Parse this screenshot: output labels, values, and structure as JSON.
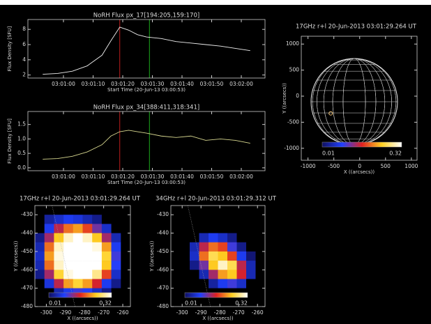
{
  "chart_data": [
    {
      "type": "line",
      "title": "NoRH Flux px_17[194:205,159:170]",
      "ylabel": "Flux Density [SFU]",
      "xlabel": "Start Time (20-Jun-13 03:00:53)",
      "x": [
        "03:00:53",
        "03:00:58",
        "03:01:03",
        "03:01:08",
        "03:01:13",
        "03:01:16",
        "03:01:19",
        "03:01:22",
        "03:01:25",
        "03:01:28",
        "03:01:33",
        "03:01:38",
        "03:01:43",
        "03:01:48",
        "03:01:53",
        "03:01:58",
        "03:02:03"
      ],
      "series": [
        {
          "name": "px_17",
          "color": "#f0f0f0",
          "values": [
            2.1,
            2.2,
            2.5,
            3.2,
            4.6,
            6.5,
            8.3,
            7.9,
            7.3,
            7.0,
            6.8,
            6.4,
            6.2,
            6.0,
            5.8,
            5.5,
            5.2
          ]
        }
      ],
      "xlim": [
        "03:00:48",
        "03:02:08"
      ],
      "xticks": [
        "03:01:00",
        "03:01:10",
        "03:01:20",
        "03:01:30",
        "03:01:40",
        "03:01:50",
        "03:02:00"
      ],
      "ylim": [
        1.6,
        9.3
      ],
      "yticks": [
        2,
        4,
        6,
        8
      ],
      "markers": [
        {
          "x": "03:01:19",
          "color": "#d42020"
        },
        {
          "x": "03:01:29",
          "color": "#20c020"
        }
      ]
    },
    {
      "type": "line",
      "title": "NoRH Flux px_34[388:411,318:341]",
      "ylabel": "Flux Density [SFU]",
      "xlabel": "Start Time (20-Jun-13 03:00:53)",
      "x": [
        "03:00:53",
        "03:00:58",
        "03:01:03",
        "03:01:08",
        "03:01:13",
        "03:01:16",
        "03:01:19",
        "03:01:22",
        "03:01:25",
        "03:01:28",
        "03:01:33",
        "03:01:38",
        "03:01:43",
        "03:01:48",
        "03:01:53",
        "03:01:58",
        "03:02:03"
      ],
      "series": [
        {
          "name": "px_34",
          "color": "#d8d890",
          "values": [
            0.3,
            0.32,
            0.4,
            0.55,
            0.8,
            1.1,
            1.25,
            1.3,
            1.25,
            1.2,
            1.1,
            1.05,
            1.1,
            0.95,
            1.0,
            0.95,
            0.85
          ]
        }
      ],
      "xlim": [
        "03:00:48",
        "03:02:08"
      ],
      "xticks": [
        "03:01:00",
        "03:01:10",
        "03:01:20",
        "03:01:30",
        "03:01:40",
        "03:01:50",
        "03:02:00"
      ],
      "ylim": [
        -0.1,
        1.95
      ],
      "yticks": [
        {
          "value": 0,
          "label": "0.0"
        },
        {
          "value": 0.5,
          "label": "0.5"
        },
        {
          "value": 1,
          "label": "1.0"
        },
        {
          "value": 1.5,
          "label": "1.5"
        }
      ],
      "markers": [
        {
          "x": "03:01:19",
          "color": "#d42020"
        },
        {
          "x": "03:01:29",
          "color": "#20c020"
        }
      ]
    },
    {
      "type": "disk",
      "title": "17GHz r+l 20-Jun-2013 03:01:29.264 UT",
      "xlabel": "X ((arcsecs))",
      "ylabel": "Y ((arcsecs))",
      "xlim": [
        -1130,
        1110
      ],
      "xticks": [
        -1000,
        -500,
        0,
        500,
        1000
      ],
      "ylim": [
        -1230,
        1150
      ],
      "yticks": [
        -1000,
        -500,
        0,
        500,
        1000
      ],
      "source": {
        "x": -560,
        "y": -330
      },
      "zlim": [
        0.01,
        0.32
      ]
    },
    {
      "type": "heatmap",
      "title": "17GHz r+l 20-Jun-2013 03:01:29.264 UT",
      "xlabel": "X ((arcsecs))",
      "ylabel": "Y ((arcsecs))",
      "xlim": [
        -306,
        -256
      ],
      "xticks": [
        -300,
        -290,
        -280,
        -270,
        -260
      ],
      "ylim": [
        -480,
        -425
      ],
      "yticks": [
        -430,
        -440,
        -450,
        -460,
        -470,
        -480
      ],
      "zlim": [
        0.01,
        0.32
      ],
      "z": [
        [
          0,
          0,
          0,
          0,
          0,
          0,
          0,
          0,
          0,
          0
        ],
        [
          0,
          0.04,
          0.06,
          0.08,
          0.07,
          0.05,
          0.03,
          0,
          0,
          0
        ],
        [
          0,
          0.08,
          0.15,
          0.2,
          0.22,
          0.18,
          0.12,
          0.06,
          0,
          0
        ],
        [
          0.03,
          0.14,
          0.24,
          0.3,
          0.32,
          0.3,
          0.24,
          0.14,
          0.05,
          0
        ],
        [
          0.05,
          0.2,
          0.3,
          0.33,
          0.34,
          0.34,
          0.31,
          0.22,
          0.08,
          0
        ],
        [
          0.06,
          0.22,
          0.31,
          0.34,
          0.35,
          0.35,
          0.33,
          0.25,
          0.1,
          0
        ],
        [
          0.05,
          0.2,
          0.3,
          0.34,
          0.35,
          0.35,
          0.33,
          0.24,
          0.09,
          0
        ],
        [
          0.03,
          0.14,
          0.25,
          0.31,
          0.33,
          0.32,
          0.28,
          0.18,
          0.06,
          0
        ],
        [
          0,
          0.07,
          0.15,
          0.22,
          0.25,
          0.22,
          0.16,
          0.08,
          0.03,
          0
        ],
        [
          0,
          0,
          0.05,
          0.08,
          0.1,
          0.09,
          0.06,
          0.03,
          0,
          0
        ],
        [
          0,
          0,
          0,
          0,
          0,
          0,
          0,
          0,
          0,
          0
        ]
      ]
    },
    {
      "type": "heatmap",
      "title": "34GHz r+l 20-Jun-2013 03:01:29.312 UT",
      "xlabel": "X ((arcsecs))",
      "ylabel": "Y ((arcsecs))",
      "xlim": [
        -306,
        -256
      ],
      "xticks": [
        -300,
        -290,
        -280,
        -270,
        -260
      ],
      "ylim": [
        -480,
        -425
      ],
      "yticks": [
        -430,
        -440,
        -450,
        -460,
        -470,
        -480
      ],
      "zlim": [
        0.01,
        0.32
      ],
      "z": [
        [
          0,
          0,
          0,
          0,
          0,
          0,
          0,
          0,
          0,
          0
        ],
        [
          0,
          0,
          0,
          0,
          0,
          0,
          0,
          0,
          0,
          0
        ],
        [
          0,
          0,
          0,
          0,
          0,
          0,
          0,
          0,
          0,
          0
        ],
        [
          0,
          0,
          0,
          0.05,
          0.08,
          0.06,
          0.03,
          0,
          0,
          0
        ],
        [
          0,
          0,
          0.05,
          0.15,
          0.2,
          0.18,
          0.1,
          0.03,
          0,
          0
        ],
        [
          0,
          0,
          0.06,
          0.2,
          0.26,
          0.24,
          0.18,
          0.08,
          0.02,
          0
        ],
        [
          0,
          0,
          0.03,
          0.12,
          0.24,
          0.3,
          0.26,
          0.15,
          0.05,
          0
        ],
        [
          0,
          0,
          0,
          0.05,
          0.14,
          0.22,
          0.24,
          0.16,
          0.05,
          0
        ],
        [
          0,
          0,
          0,
          0,
          0.04,
          0.08,
          0.1,
          0.06,
          0,
          0
        ],
        [
          0,
          0,
          0,
          0,
          0,
          0,
          0,
          0,
          0,
          0
        ],
        [
          0,
          0,
          0,
          0,
          0,
          0,
          0,
          0,
          0,
          0
        ]
      ]
    }
  ]
}
